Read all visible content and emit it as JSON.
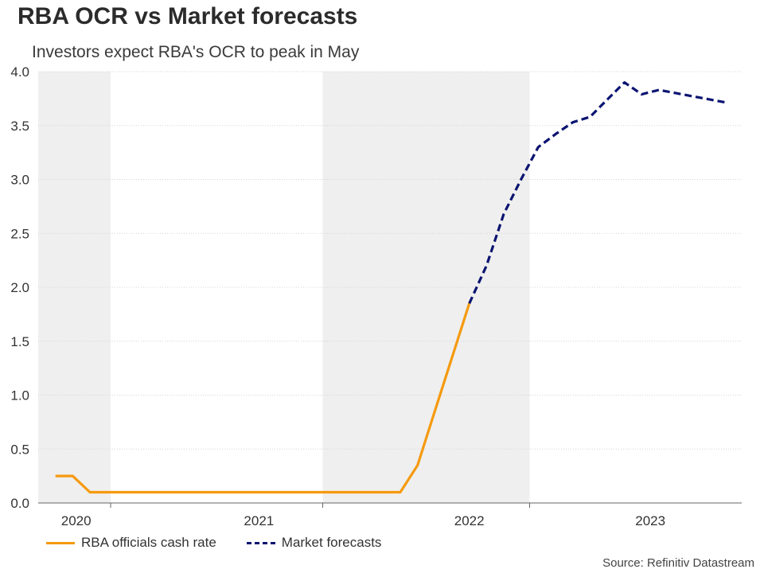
{
  "chart_data": {
    "type": "line",
    "title": "RBA OCR vs Market forecasts",
    "subtitle": "Investors expect RBA's OCR to peak in May",
    "source": "Source: Refinitiv Datastream",
    "ylim": [
      0,
      4.0
    ],
    "yticks": [
      0.0,
      0.5,
      1.0,
      1.5,
      2.0,
      2.5,
      3.0,
      3.5,
      4.0
    ],
    "ytick_labels": [
      "0.0",
      "0.5",
      "1.0",
      "1.5",
      "2.0",
      "2.5",
      "3.0",
      "3.5",
      "4.0"
    ],
    "xlim": [
      0,
      40.8
    ],
    "year_labels": [
      {
        "label": "2020",
        "at": 2.2
      },
      {
        "label": "2021",
        "at": 12.8
      },
      {
        "label": "2022",
        "at": 25.0
      },
      {
        "label": "2023",
        "at": 35.5
      }
    ],
    "year_ticks": [
      4.2,
      16.5,
      28.5
    ],
    "shaded_bands": [
      [
        0,
        4.2
      ],
      [
        16.5,
        28.5
      ]
    ],
    "grid": true,
    "series": [
      {
        "name": "RBA officials cash rate",
        "color": "#f59a0f",
        "style": "solid",
        "points": [
          [
            1,
            0.25
          ],
          [
            2,
            0.25
          ],
          [
            3,
            0.1
          ],
          [
            4,
            0.1
          ],
          [
            10,
            0.1
          ],
          [
            16,
            0.1
          ],
          [
            21,
            0.1
          ],
          [
            22,
            0.35
          ],
          [
            23,
            0.85
          ],
          [
            24,
            1.35
          ],
          [
            25,
            1.85
          ]
        ]
      },
      {
        "name": "Market forecasts",
        "color": "#0b1470",
        "style": "dashed",
        "points": [
          [
            25,
            1.85
          ],
          [
            26,
            2.2
          ],
          [
            27,
            2.68
          ],
          [
            28,
            3.0
          ],
          [
            29,
            3.3
          ],
          [
            30,
            3.42
          ],
          [
            31,
            3.53
          ],
          [
            32,
            3.58
          ],
          [
            33,
            3.74
          ],
          [
            34,
            3.9
          ],
          [
            35,
            3.79
          ],
          [
            36,
            3.83
          ],
          [
            37,
            3.8
          ],
          [
            38,
            3.77
          ],
          [
            39,
            3.74
          ],
          [
            40,
            3.71
          ]
        ]
      }
    ]
  }
}
